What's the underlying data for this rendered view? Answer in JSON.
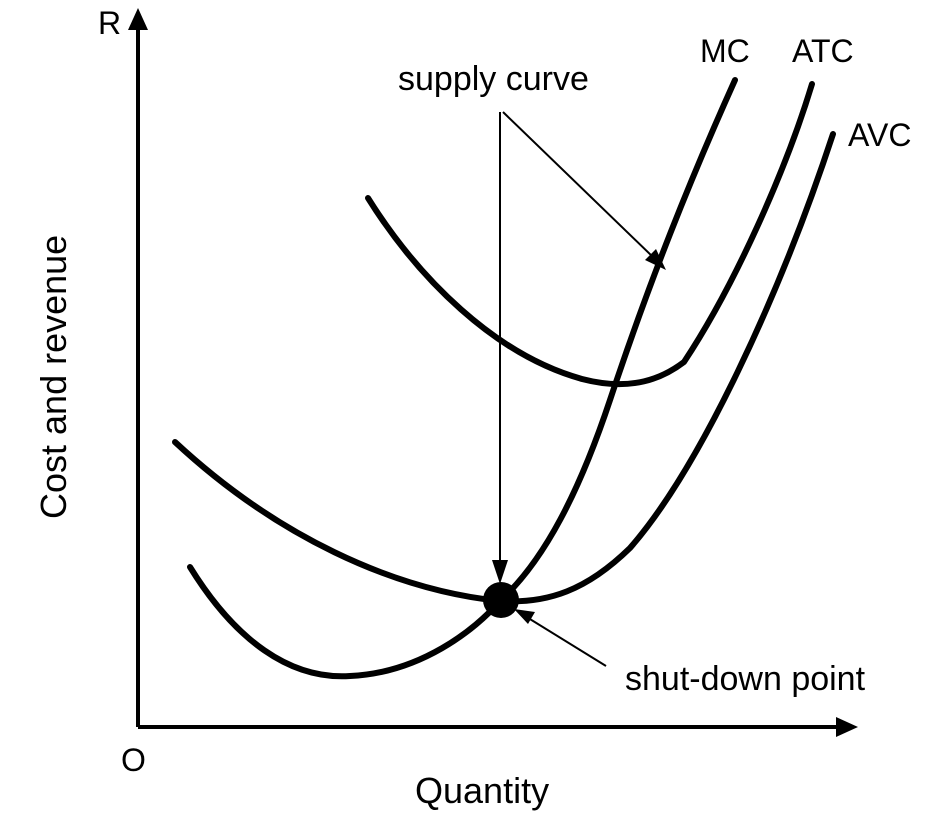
{
  "axes": {
    "y_label": "Cost and revenue",
    "y_end_label": "R",
    "x_label": "Quantity",
    "origin_label": "O"
  },
  "curves": {
    "mc": "MC",
    "atc": "ATC",
    "avc": "AVC"
  },
  "annotations": {
    "supply_curve": "supply curve",
    "shutdown_point": "shut-down point"
  },
  "colors": {
    "ink": "#000000",
    "background": "#ffffff"
  }
}
